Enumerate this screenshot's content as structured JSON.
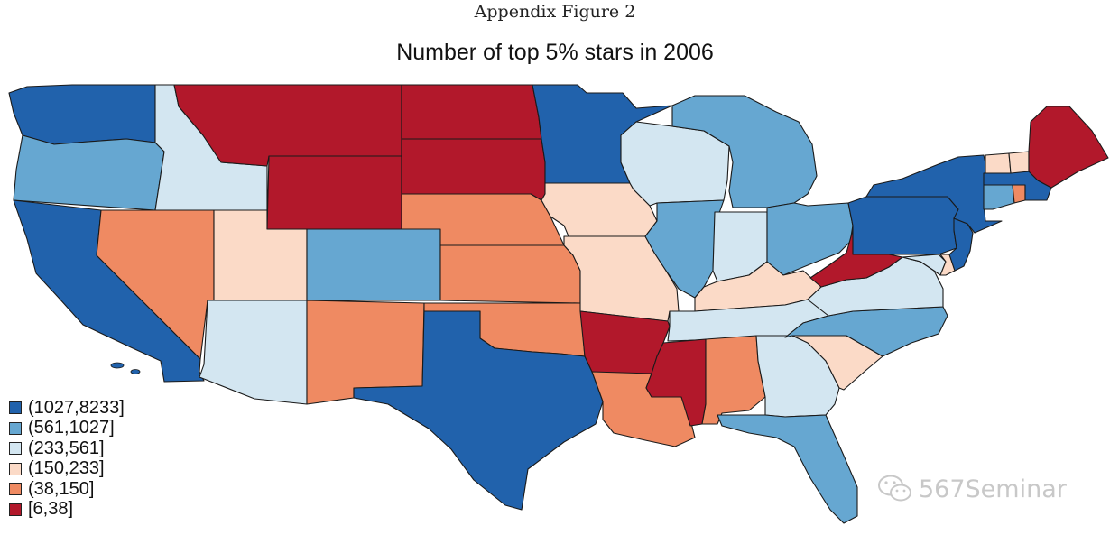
{
  "header": {
    "appendix": "Appendix Figure 2"
  },
  "map": {
    "title": "Number of top 5% stars in 2006",
    "legend": [
      {
        "label": "(1027,8233]",
        "color": "#2162ac"
      },
      {
        "label": "(561,1027]",
        "color": "#66a7d1"
      },
      {
        "label": "(233,561]",
        "color": "#d3e6f1"
      },
      {
        "label": "(150,233]",
        "color": "#fbdac7"
      },
      {
        "label": "(38,150]",
        "color": "#ef8a62"
      },
      {
        "label": "[6,38]",
        "color": "#b2182b"
      }
    ],
    "states": [
      {
        "id": "WA",
        "bin": 0
      },
      {
        "id": "OR",
        "bin": 1
      },
      {
        "id": "CA",
        "bin": 0
      },
      {
        "id": "ID",
        "bin": 2
      },
      {
        "id": "NV",
        "bin": 4
      },
      {
        "id": "UT",
        "bin": 3
      },
      {
        "id": "AZ",
        "bin": 2
      },
      {
        "id": "MT",
        "bin": 5
      },
      {
        "id": "WY",
        "bin": 5
      },
      {
        "id": "CO",
        "bin": 1
      },
      {
        "id": "NM",
        "bin": 4
      },
      {
        "id": "ND",
        "bin": 5
      },
      {
        "id": "SD",
        "bin": 5
      },
      {
        "id": "NE",
        "bin": 4
      },
      {
        "id": "KS",
        "bin": 4
      },
      {
        "id": "OK",
        "bin": 4
      },
      {
        "id": "TX",
        "bin": 0
      },
      {
        "id": "MN",
        "bin": 0
      },
      {
        "id": "IA",
        "bin": 3
      },
      {
        "id": "MO",
        "bin": 3
      },
      {
        "id": "AR",
        "bin": 5
      },
      {
        "id": "LA",
        "bin": 4
      },
      {
        "id": "WI",
        "bin": 2
      },
      {
        "id": "IL",
        "bin": 1
      },
      {
        "id": "MI",
        "bin": 1
      },
      {
        "id": "IN",
        "bin": 2
      },
      {
        "id": "OH",
        "bin": 1
      },
      {
        "id": "KY",
        "bin": 3
      },
      {
        "id": "TN",
        "bin": 2
      },
      {
        "id": "MS",
        "bin": 5
      },
      {
        "id": "AL",
        "bin": 4
      },
      {
        "id": "GA",
        "bin": 2
      },
      {
        "id": "FL",
        "bin": 1
      },
      {
        "id": "SC",
        "bin": 3
      },
      {
        "id": "NC",
        "bin": 1
      },
      {
        "id": "VA",
        "bin": 2
      },
      {
        "id": "WV",
        "bin": 5
      },
      {
        "id": "PA",
        "bin": 0
      },
      {
        "id": "NY",
        "bin": 0
      },
      {
        "id": "NJ",
        "bin": 0
      },
      {
        "id": "MD",
        "bin": 2
      },
      {
        "id": "DE",
        "bin": 3
      },
      {
        "id": "CT",
        "bin": 1
      },
      {
        "id": "RI",
        "bin": 4
      },
      {
        "id": "MA",
        "bin": 0
      },
      {
        "id": "VT",
        "bin": 3
      },
      {
        "id": "NH",
        "bin": 3
      },
      {
        "id": "ME",
        "bin": 5
      }
    ]
  },
  "watermark": {
    "text": "567Seminar",
    "icon": "wechat-icon"
  }
}
